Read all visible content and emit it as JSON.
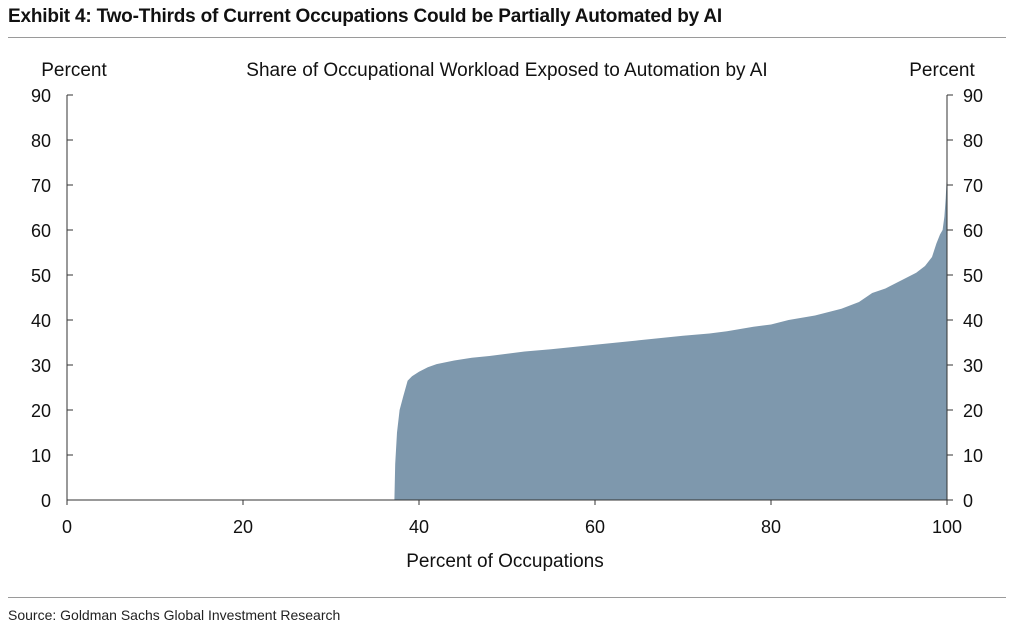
{
  "exhibit_title": "Exhibit 4: Two-Thirds of Current Occupations Could be Partially Automated by AI",
  "source": "Source: Goldman Sachs Global Investment Research",
  "colors": {
    "area_fill": "#7e98ad",
    "axis": "#333333",
    "rule": "#9a9a9a"
  },
  "chart_data": {
    "type": "area",
    "title": "Share of Occupational Workload Exposed to Automation by AI",
    "xlabel": "Percent of Occupations",
    "ylabel_left": "Percent",
    "ylabel_right": "Percent",
    "xlim": [
      0,
      100
    ],
    "ylim": [
      0,
      90
    ],
    "xticks": [
      0,
      20,
      40,
      60,
      80,
      100
    ],
    "yticks": [
      0,
      10,
      20,
      30,
      40,
      50,
      60,
      70,
      80,
      90
    ],
    "grid": false,
    "legend": "none",
    "series": [
      {
        "x": [
          37.2,
          37.3,
          37.5,
          37.8,
          38.2,
          38.7,
          39.2,
          40.0,
          41.0,
          42.0,
          44.0,
          46.0,
          48.0,
          50.0,
          52.0,
          55.0,
          60.0,
          65.0,
          70.0,
          73.0,
          75.0,
          78.0,
          80.0,
          82.0,
          85.0,
          88.0,
          90.0,
          91.5,
          93.0,
          95.0,
          96.5,
          97.5,
          98.3,
          98.8,
          99.2,
          99.5,
          99.7,
          99.85,
          100.0
        ],
        "y": [
          0,
          8,
          15,
          20,
          23,
          26.5,
          27.5,
          28.5,
          29.5,
          30.2,
          31.0,
          31.6,
          32.0,
          32.5,
          33.0,
          33.5,
          34.5,
          35.5,
          36.5,
          37.0,
          37.5,
          38.5,
          39.0,
          40.0,
          41.0,
          42.5,
          44.0,
          46.0,
          47.0,
          49.0,
          50.5,
          52.0,
          54.0,
          57.0,
          59.0,
          60.0,
          63.0,
          67.0,
          73.0
        ]
      }
    ]
  }
}
